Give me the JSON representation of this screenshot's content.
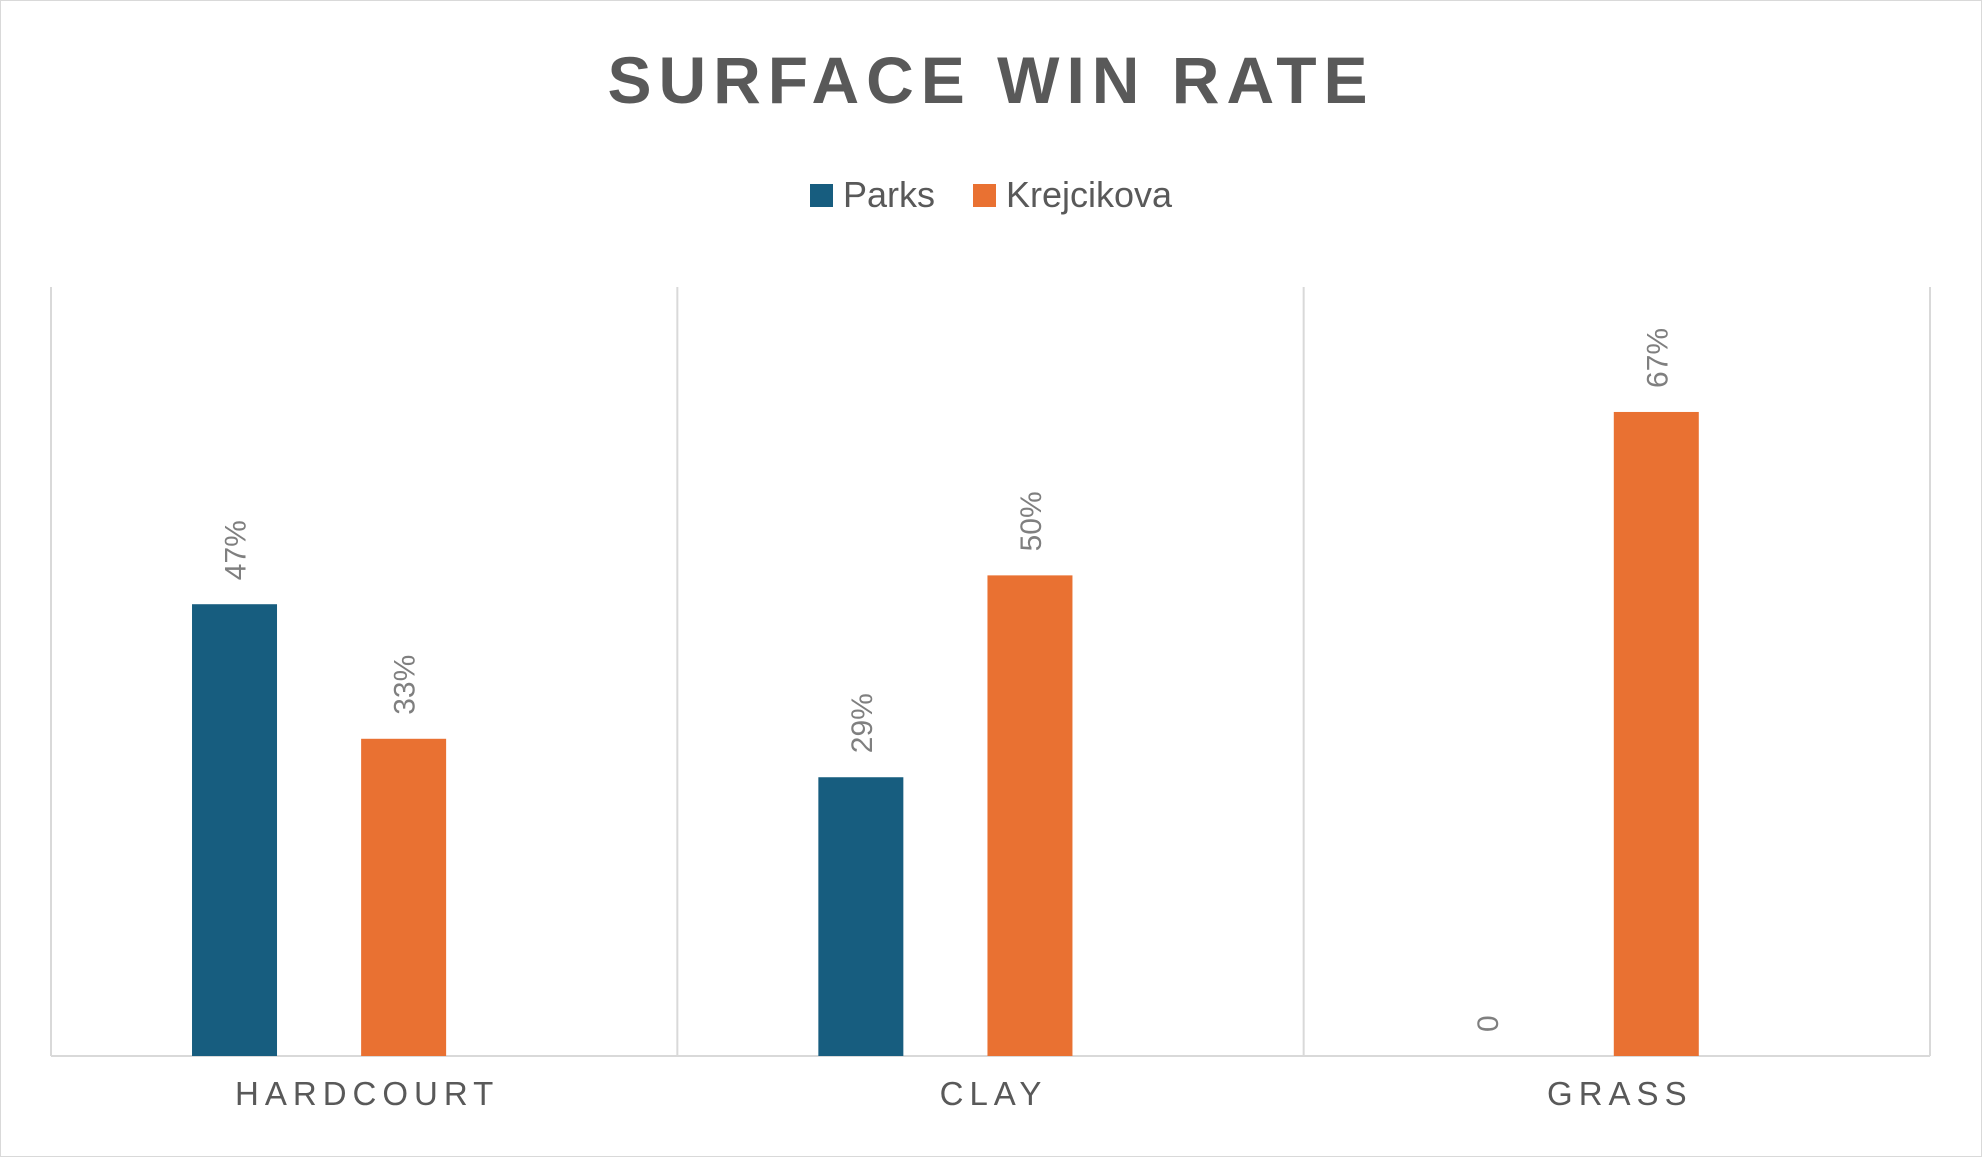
{
  "chart_data": {
    "type": "bar",
    "title": "SURFACE WIN RATE",
    "categories": [
      "HARDCOURT",
      "CLAY",
      "GRASS"
    ],
    "series": [
      {
        "name": "Parks",
        "color": "#175d7f",
        "values": [
          47,
          29,
          0
        ],
        "labels": [
          "47%",
          "29%",
          "0"
        ]
      },
      {
        "name": "Krejcikova",
        "color": "#e97132",
        "values": [
          33,
          50,
          67
        ],
        "labels": [
          "33%",
          "50%",
          "67%"
        ]
      }
    ],
    "ylim": [
      0,
      80
    ],
    "grid": false,
    "legend_position": "top"
  }
}
